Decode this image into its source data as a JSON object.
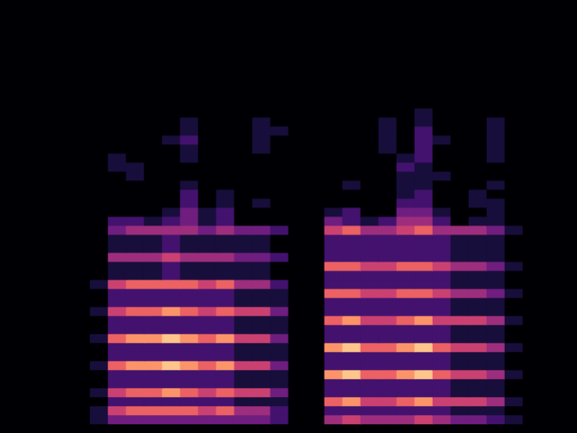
{
  "chart_data": {
    "type": "heatmap",
    "tick_labels": false,
    "grid": false,
    "clim": [
      0,
      9
    ],
    "cells": [
      [
        0,
        0,
        0,
        0,
        0,
        0,
        0,
        0,
        0,
        0,
        0,
        0,
        0,
        0,
        0,
        0,
        0,
        0,
        0,
        0,
        0,
        0,
        0,
        0,
        0,
        0,
        0,
        0,
        0,
        0,
        0,
        0
      ],
      [
        0,
        0,
        0,
        0,
        0,
        0,
        0,
        0,
        0,
        0,
        0,
        0,
        0,
        0,
        0,
        0,
        0,
        0,
        0,
        0,
        0,
        0,
        0,
        0,
        0,
        0,
        0,
        0,
        0,
        0,
        0,
        0
      ],
      [
        0,
        0,
        0,
        0,
        0,
        0,
        0,
        0,
        0,
        0,
        0,
        0,
        0,
        0,
        0,
        0,
        0,
        0,
        0,
        0,
        0,
        0,
        0,
        0,
        0,
        0,
        0,
        0,
        0,
        0,
        0,
        0
      ],
      [
        0,
        0,
        0,
        0,
        0,
        0,
        0,
        0,
        0,
        0,
        0,
        0,
        0,
        0,
        0,
        0,
        0,
        0,
        0,
        0,
        0,
        0,
        0,
        0,
        0,
        0,
        0,
        0,
        0,
        0,
        0,
        0
      ],
      [
        0,
        0,
        0,
        0,
        0,
        0,
        0,
        0,
        0,
        0,
        0,
        0,
        0,
        0,
        0,
        0,
        0,
        0,
        0,
        0,
        0,
        0,
        0,
        0,
        0,
        0,
        0,
        0,
        0,
        0,
        0,
        0
      ],
      [
        0,
        0,
        0,
        0,
        0,
        0,
        0,
        0,
        0,
        0,
        0,
        0,
        0,
        0,
        0,
        0,
        0,
        0,
        0,
        0,
        0,
        0,
        0,
        0,
        0,
        0,
        0,
        0,
        0,
        0,
        0,
        0
      ],
      [
        0,
        0,
        0,
        0,
        0,
        0,
        0,
        0,
        0,
        0,
        0,
        0,
        0,
        0,
        0,
        0,
        0,
        0,
        0,
        0,
        0,
        0,
        0,
        0,
        0,
        0,
        0,
        0,
        0,
        0,
        0,
        0
      ],
      [
        0,
        0,
        0,
        0,
        0,
        0,
        0,
        0,
        0,
        0,
        0,
        0,
        0,
        0,
        0,
        0,
        0,
        0,
        0,
        0,
        0,
        0,
        0,
        0,
        0,
        0,
        0,
        0,
        0,
        0,
        0,
        0
      ],
      [
        0,
        0,
        0,
        0,
        0,
        0,
        0,
        0,
        0,
        0,
        0,
        0,
        0,
        0,
        0,
        0,
        0,
        0,
        0,
        0,
        0,
        0,
        0,
        0,
        0,
        0,
        0,
        0,
        0,
        0,
        0,
        0
      ],
      [
        0,
        0,
        0,
        0,
        0,
        0,
        0,
        0,
        0,
        0,
        0,
        0,
        0,
        0,
        0,
        0,
        0,
        0,
        0,
        0,
        0,
        0,
        0,
        0,
        0,
        0,
        0,
        0,
        0,
        0,
        0,
        0
      ],
      [
        0,
        0,
        0,
        0,
        0,
        0,
        0,
        0,
        0,
        0,
        0,
        0,
        0,
        0,
        0,
        0,
        0,
        0,
        0,
        0,
        0,
        0,
        0,
        0,
        0,
        0,
        0,
        0,
        0,
        0,
        0,
        0
      ],
      [
        0,
        0,
        0,
        0,
        0,
        0,
        0,
        0,
        0,
        0,
        0,
        0,
        0,
        0,
        0,
        0,
        0,
        0,
        0,
        0,
        0,
        0,
        0,
        0,
        0,
        0,
        0,
        0,
        0,
        0,
        0,
        0
      ],
      [
        0,
        0,
        0,
        0,
        0,
        0,
        0,
        0,
        0,
        0,
        0,
        0,
        0,
        0,
        0,
        0,
        0,
        0,
        0,
        0,
        0,
        0,
        0,
        1,
        0,
        0,
        0,
        0,
        0,
        0,
        0,
        0
      ],
      [
        0,
        0,
        0,
        0,
        0,
        0,
        0,
        0,
        0,
        0,
        1,
        0,
        0,
        0,
        1,
        0,
        0,
        0,
        0,
        0,
        0,
        1,
        0,
        1,
        0,
        0,
        0,
        1,
        0,
        0,
        0,
        0
      ],
      [
        0,
        0,
        0,
        0,
        0,
        0,
        0,
        0,
        0,
        0,
        1,
        0,
        0,
        0,
        1,
        1,
        0,
        0,
        0,
        0,
        0,
        1,
        0,
        2,
        0,
        0,
        0,
        1,
        0,
        0,
        0,
        0
      ],
      [
        0,
        0,
        0,
        0,
        0,
        0,
        0,
        0,
        0,
        1,
        2,
        0,
        0,
        0,
        1,
        0,
        0,
        0,
        0,
        0,
        0,
        1,
        0,
        2,
        1,
        0,
        0,
        1,
        0,
        0,
        0,
        0
      ],
      [
        0,
        0,
        0,
        0,
        0,
        0,
        0,
        0,
        0,
        0,
        1,
        0,
        0,
        0,
        1,
        0,
        0,
        0,
        0,
        0,
        0,
        1,
        0,
        2,
        0,
        0,
        0,
        1,
        0,
        0,
        0,
        0
      ],
      [
        0,
        0,
        0,
        0,
        0,
        0,
        1,
        0,
        0,
        0,
        1,
        0,
        0,
        0,
        0,
        0,
        0,
        0,
        0,
        0,
        0,
        0,
        1,
        2,
        0,
        0,
        0,
        1,
        0,
        0,
        0,
        0
      ],
      [
        0,
        0,
        0,
        0,
        0,
        0,
        1,
        1,
        0,
        0,
        0,
        0,
        0,
        0,
        0,
        0,
        0,
        0,
        0,
        0,
        0,
        0,
        2,
        1,
        0,
        0,
        0,
        0,
        0,
        0,
        0,
        0
      ],
      [
        0,
        0,
        0,
        0,
        0,
        0,
        0,
        1,
        0,
        0,
        0,
        0,
        0,
        0,
        0,
        0,
        0,
        0,
        0,
        0,
        0,
        0,
        1,
        1,
        1,
        0,
        0,
        0,
        0,
        0,
        0,
        0
      ],
      [
        0,
        0,
        0,
        0,
        0,
        0,
        0,
        0,
        0,
        0,
        1,
        0,
        0,
        0,
        0,
        0,
        0,
        0,
        0,
        1,
        0,
        0,
        1,
        1,
        0,
        0,
        0,
        1,
        0,
        0,
        0,
        0
      ],
      [
        0,
        0,
        0,
        0,
        0,
        0,
        0,
        0,
        0,
        0,
        2,
        0,
        1,
        0,
        0,
        0,
        0,
        0,
        0,
        0,
        0,
        0,
        1,
        2,
        0,
        0,
        1,
        0,
        0,
        0,
        0,
        0
      ],
      [
        0,
        0,
        0,
        0,
        0,
        0,
        0,
        0,
        0,
        0,
        2,
        0,
        1,
        0,
        1,
        0,
        0,
        0,
        0,
        0,
        0,
        0,
        2,
        2,
        0,
        0,
        1,
        1,
        0,
        0,
        0,
        0
      ],
      [
        0,
        0,
        0,
        0,
        0,
        0,
        0,
        0,
        0,
        1,
        3,
        1,
        2,
        0,
        0,
        0,
        0,
        0,
        1,
        2,
        0,
        0,
        3,
        3,
        1,
        0,
        0,
        1,
        0,
        0,
        0,
        0
      ],
      [
        0,
        0,
        0,
        0,
        0,
        0,
        2,
        2,
        1,
        2,
        3,
        1,
        2,
        0,
        0,
        0,
        0,
        0,
        3,
        2,
        1,
        2,
        4,
        4,
        2,
        0,
        1,
        1,
        0,
        0,
        0,
        0
      ],
      [
        0,
        0,
        0,
        0,
        0,
        0,
        3,
        4,
        4,
        4,
        4,
        3,
        4,
        3,
        3,
        2,
        0,
        0,
        5,
        6,
        4,
        4,
        5,
        6,
        4,
        4,
        4,
        3,
        1,
        0,
        0,
        0
      ],
      [
        0,
        0,
        0,
        0,
        0,
        0,
        1,
        1,
        1,
        2,
        1,
        1,
        1,
        1,
        1,
        0,
        0,
        0,
        2,
        2,
        2,
        2,
        2,
        2,
        2,
        1,
        1,
        1,
        0,
        0,
        0,
        0
      ],
      [
        0,
        0,
        0,
        0,
        0,
        0,
        1,
        1,
        1,
        2,
        1,
        1,
        1,
        1,
        1,
        0,
        0,
        0,
        2,
        2,
        2,
        2,
        2,
        2,
        2,
        1,
        1,
        1,
        0,
        0,
        0,
        0
      ],
      [
        0,
        0,
        0,
        0,
        0,
        0,
        4,
        4,
        4,
        5,
        4,
        4,
        4,
        3,
        3,
        2,
        0,
        0,
        2,
        2,
        2,
        2,
        2,
        2,
        2,
        1,
        1,
        1,
        0,
        0,
        0,
        0
      ],
      [
        0,
        0,
        0,
        0,
        0,
        0,
        1,
        1,
        1,
        2,
        1,
        1,
        1,
        1,
        1,
        0,
        0,
        0,
        6,
        6,
        5,
        5,
        6,
        6,
        5,
        4,
        4,
        3,
        1,
        0,
        0,
        0
      ],
      [
        0,
        0,
        0,
        0,
        0,
        0,
        1,
        1,
        1,
        2,
        1,
        1,
        1,
        1,
        1,
        0,
        0,
        0,
        2,
        2,
        2,
        2,
        2,
        2,
        2,
        1,
        1,
        1,
        0,
        0,
        0,
        0
      ],
      [
        0,
        0,
        0,
        0,
        0,
        1,
        5,
        6,
        6,
        6,
        6,
        5,
        6,
        4,
        4,
        2,
        0,
        0,
        2,
        2,
        2,
        2,
        2,
        2,
        2,
        1,
        1,
        1,
        0,
        0,
        0,
        0
      ],
      [
        0,
        0,
        0,
        0,
        0,
        0,
        2,
        2,
        2,
        2,
        2,
        2,
        2,
        1,
        1,
        1,
        0,
        0,
        6,
        6,
        5,
        5,
        6,
        6,
        5,
        4,
        4,
        3,
        1,
        0,
        0,
        0
      ],
      [
        0,
        0,
        0,
        0,
        0,
        0,
        2,
        2,
        2,
        2,
        2,
        2,
        2,
        1,
        1,
        1,
        0,
        0,
        2,
        2,
        2,
        2,
        2,
        2,
        2,
        1,
        1,
        1,
        0,
        0,
        0,
        0
      ],
      [
        0,
        0,
        0,
        0,
        0,
        1,
        5,
        6,
        6,
        7,
        6,
        5,
        6,
        5,
        5,
        3,
        0,
        0,
        2,
        2,
        2,
        2,
        2,
        2,
        2,
        1,
        1,
        1,
        0,
        0,
        0,
        0
      ],
      [
        0,
        0,
        0,
        0,
        0,
        0,
        2,
        2,
        2,
        2,
        2,
        2,
        2,
        1,
        1,
        1,
        0,
        0,
        6,
        7,
        5,
        5,
        6,
        7,
        5,
        5,
        5,
        4,
        1,
        0,
        0,
        0
      ],
      [
        0,
        0,
        0,
        0,
        0,
        0,
        2,
        2,
        2,
        2,
        2,
        2,
        2,
        1,
        1,
        1,
        0,
        0,
        2,
        2,
        2,
        2,
        2,
        2,
        2,
        1,
        1,
        1,
        0,
        0,
        0,
        0
      ],
      [
        0,
        0,
        0,
        0,
        0,
        1,
        6,
        7,
        7,
        8,
        7,
        6,
        7,
        5,
        5,
        3,
        0,
        0,
        2,
        2,
        2,
        2,
        2,
        2,
        2,
        1,
        1,
        1,
        0,
        0,
        0,
        0
      ],
      [
        0,
        0,
        0,
        0,
        0,
        0,
        2,
        2,
        2,
        2,
        2,
        2,
        2,
        1,
        1,
        1,
        0,
        0,
        7,
        8,
        6,
        6,
        7,
        8,
        6,
        5,
        5,
        4,
        1,
        0,
        0,
        0
      ],
      [
        0,
        0,
        0,
        0,
        0,
        0,
        2,
        2,
        2,
        2,
        2,
        2,
        2,
        1,
        1,
        1,
        0,
        0,
        2,
        2,
        2,
        2,
        2,
        2,
        2,
        1,
        1,
        1,
        0,
        0,
        0,
        0
      ],
      [
        0,
        0,
        0,
        0,
        0,
        1,
        6,
        7,
        7,
        8,
        7,
        6,
        7,
        5,
        5,
        3,
        0,
        0,
        2,
        2,
        2,
        2,
        2,
        2,
        2,
        1,
        1,
        1,
        0,
        0,
        0,
        0
      ],
      [
        0,
        0,
        0,
        0,
        0,
        0,
        2,
        2,
        2,
        2,
        2,
        2,
        2,
        1,
        1,
        1,
        0,
        0,
        7,
        8,
        6,
        6,
        7,
        8,
        6,
        5,
        5,
        4,
        1,
        0,
        0,
        0
      ],
      [
        0,
        0,
        0,
        0,
        0,
        0,
        2,
        2,
        2,
        2,
        2,
        2,
        2,
        1,
        1,
        1,
        0,
        0,
        2,
        2,
        2,
        2,
        2,
        2,
        2,
        1,
        1,
        1,
        0,
        0,
        0,
        0
      ],
      [
        0,
        0,
        0,
        0,
        0,
        1,
        5,
        6,
        6,
        7,
        6,
        5,
        6,
        5,
        5,
        3,
        0,
        0,
        2,
        2,
        2,
        2,
        2,
        2,
        2,
        1,
        1,
        1,
        0,
        0,
        0,
        0
      ],
      [
        0,
        0,
        0,
        0,
        0,
        0,
        2,
        2,
        2,
        2,
        2,
        2,
        2,
        1,
        1,
        1,
        0,
        0,
        6,
        7,
        5,
        5,
        6,
        7,
        5,
        5,
        5,
        4,
        1,
        0,
        0,
        0
      ],
      [
        0,
        0,
        0,
        0,
        0,
        1,
        5,
        6,
        6,
        6,
        6,
        5,
        6,
        4,
        4,
        2,
        0,
        0,
        2,
        2,
        2,
        2,
        2,
        2,
        2,
        1,
        1,
        1,
        0,
        0,
        0,
        0
      ],
      [
        0,
        0,
        0,
        0,
        0,
        1,
        3,
        3,
        3,
        3,
        3,
        3,
        3,
        3,
        3,
        2,
        0,
        0,
        4,
        5,
        4,
        4,
        4,
        5,
        4,
        3,
        3,
        2,
        1,
        0,
        0,
        0
      ],
      [
        0,
        0,
        0,
        0,
        0,
        0,
        0,
        0,
        0,
        0,
        0,
        0,
        0,
        0,
        0,
        0,
        0,
        0,
        0,
        0,
        0,
        0,
        0,
        0,
        0,
        0,
        0,
        0,
        0,
        0,
        0,
        0
      ]
    ]
  }
}
